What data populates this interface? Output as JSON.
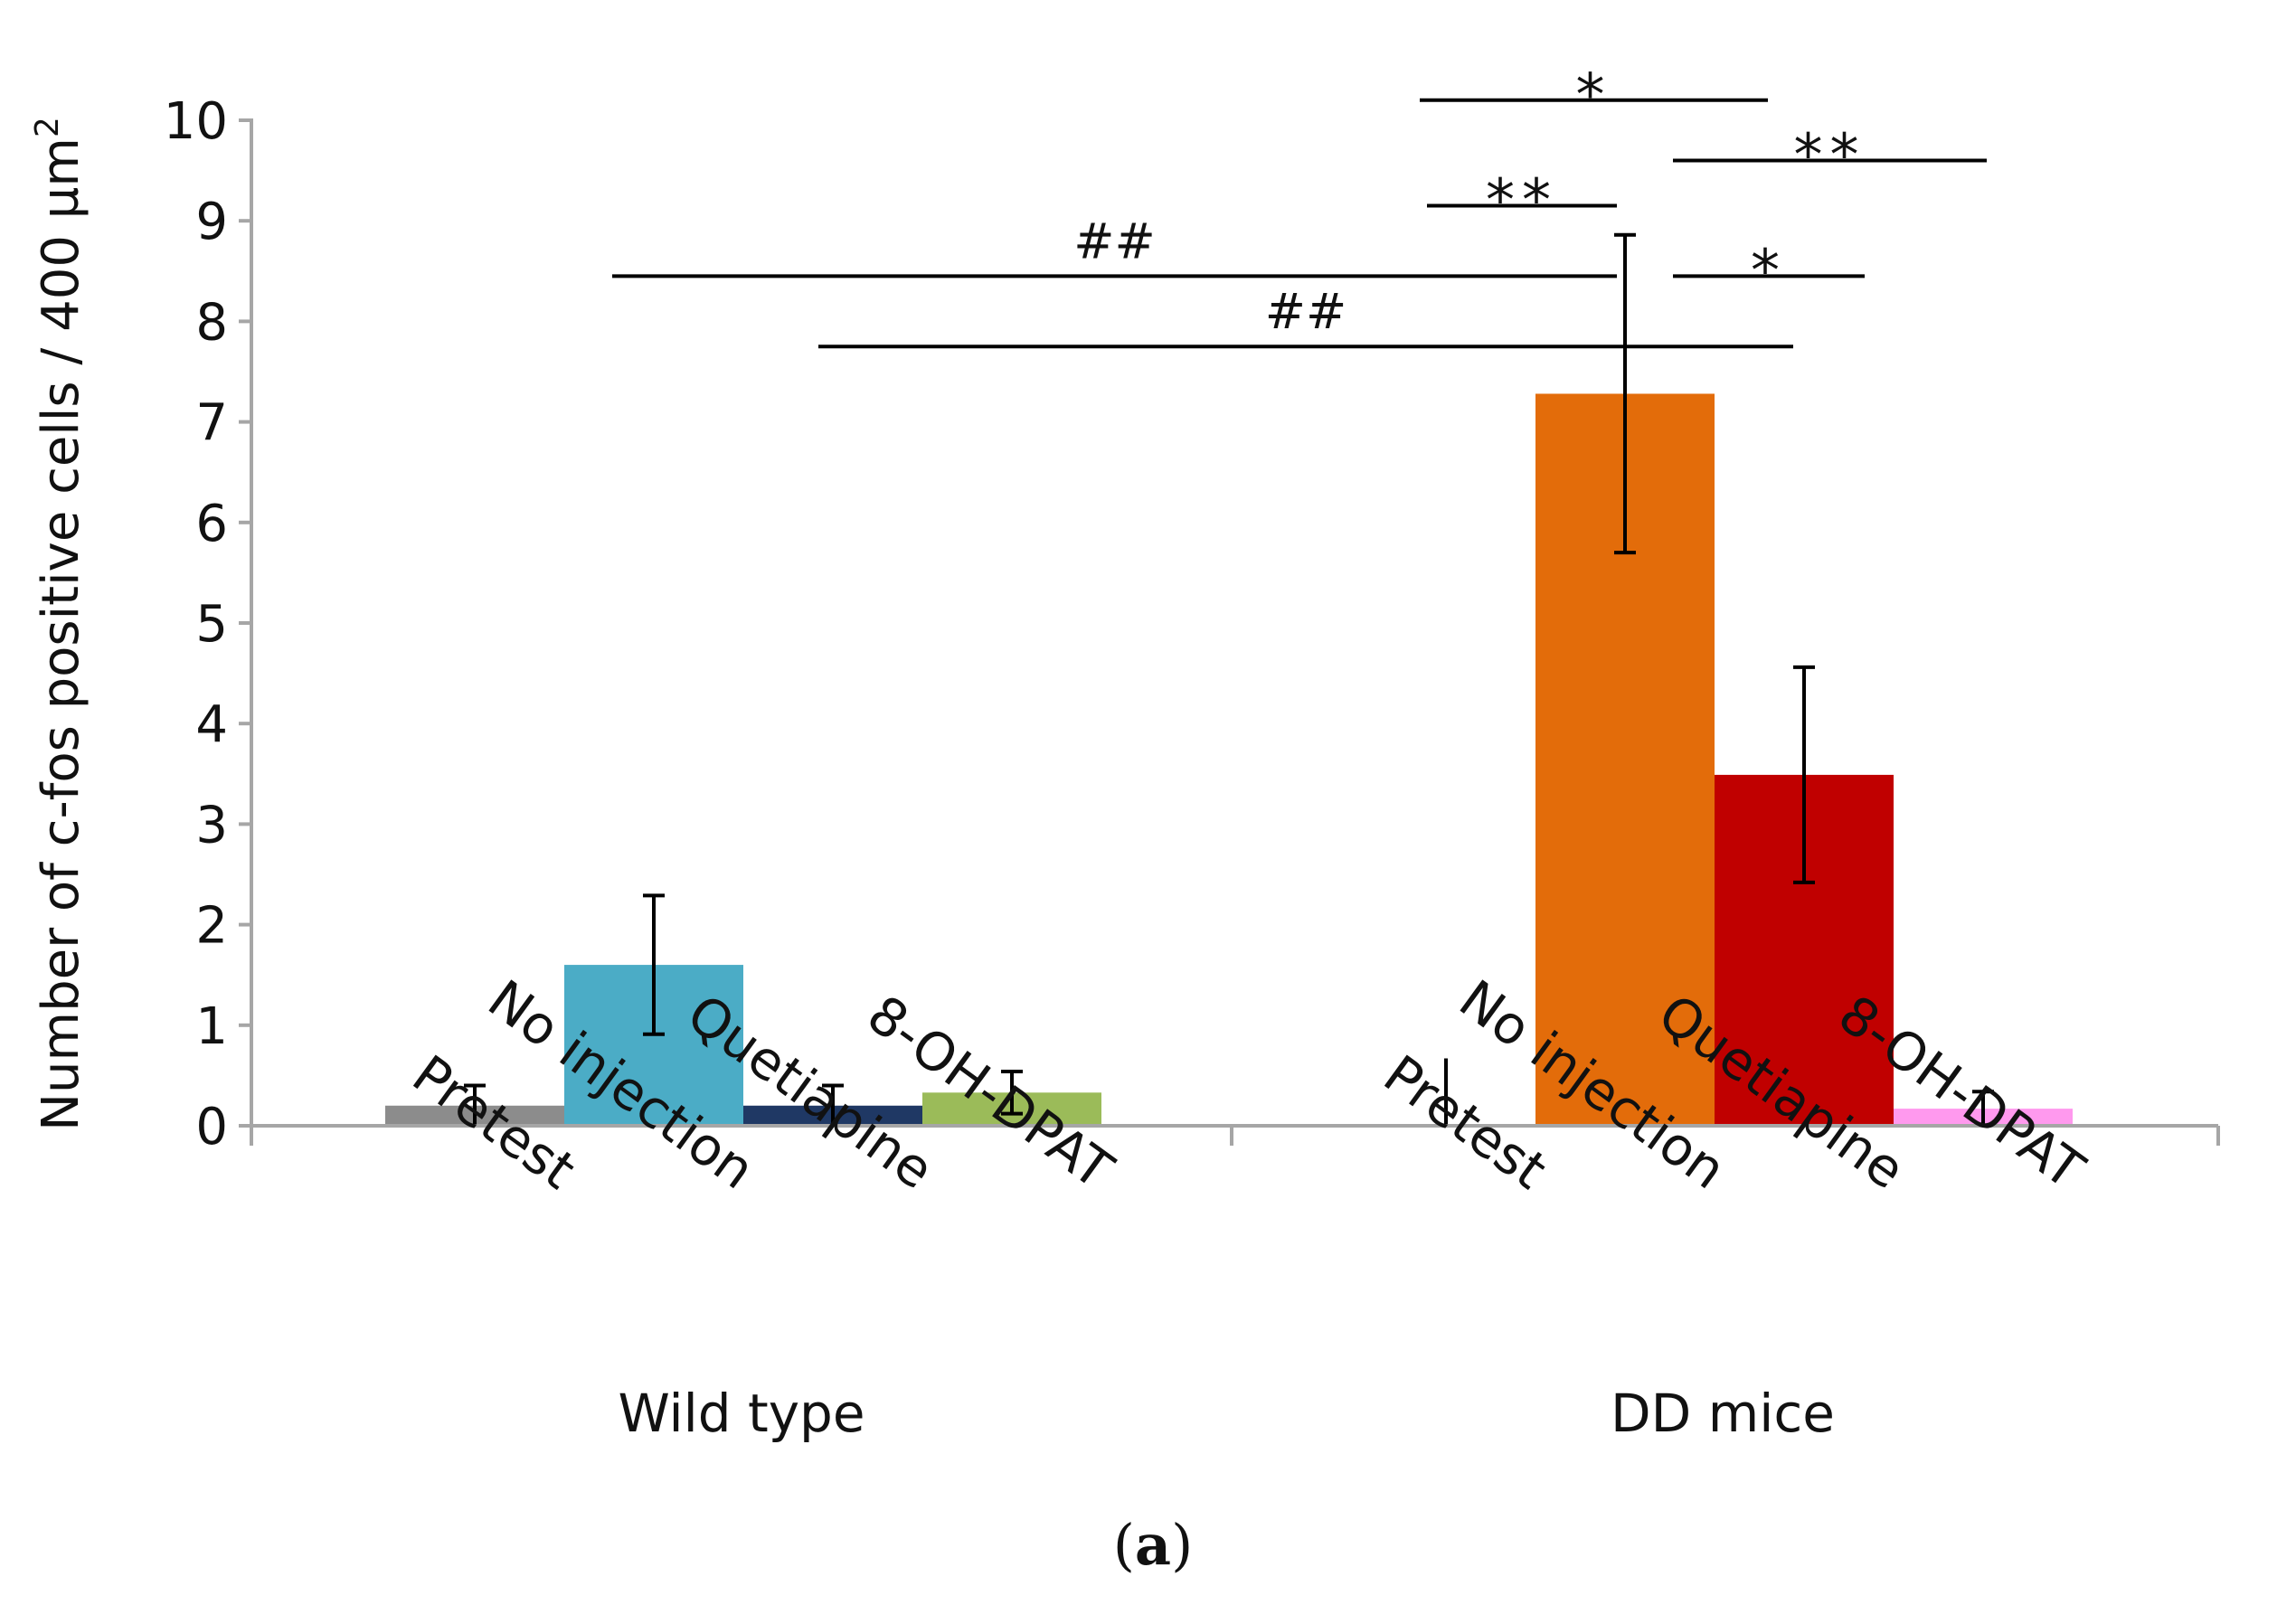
{
  "chart_data": {
    "type": "bar",
    "ylabel": "Number of c-fos positive cells / 400 µm",
    "ylabel_superscript": "2",
    "ylim": [
      0,
      10
    ],
    "yticks": [
      0,
      1,
      2,
      3,
      4,
      5,
      6,
      7,
      8,
      9,
      10
    ],
    "groups": [
      {
        "name": "Wild type",
        "bars": [
          {
            "label": "Pretest",
            "value": 0.2,
            "error": 0.2,
            "color": "#8c8c8c"
          },
          {
            "label": "No injection",
            "value": 1.6,
            "error": 0.69,
            "color": "#4bacc6"
          },
          {
            "label": "Quetiapine",
            "value": 0.2,
            "error": 0.2,
            "color": "#1f3864"
          },
          {
            "label": "8-OH-DPAT",
            "value": 0.33,
            "error": 0.21,
            "color": "#9bbb59"
          }
        ]
      },
      {
        "name": "DD mice",
        "bars": [
          {
            "label": "Pretest",
            "value": 0.0,
            "error": 0.67,
            "color": "#888888"
          },
          {
            "label": "No injection",
            "value": 7.28,
            "error": 1.58,
            "color": "#e36c0a"
          },
          {
            "label": "Quetiapine",
            "value": 3.49,
            "error": 1.07,
            "color": "#c00000"
          },
          {
            "label": "8-OH-DPAT",
            "value": 0.17,
            "error": 0.17,
            "color": "#ff99ee"
          }
        ]
      }
    ],
    "significance": [
      {
        "marker": "*",
        "from_bar": 4,
        "to_bar": 6,
        "level": 10.2
      },
      {
        "marker": "**",
        "from_bar": 6,
        "to_bar": 7,
        "level": 9.6
      },
      {
        "marker": "**",
        "from_bar": 4,
        "to_bar": 5,
        "level": 9.15
      },
      {
        "marker": "##",
        "from_bar": 1,
        "to_bar": 5,
        "level": 8.45
      },
      {
        "marker": "*",
        "from_bar": 6,
        "to_bar": 6,
        "level": 8.45
      },
      {
        "marker": "##",
        "from_bar": 2,
        "to_bar": 6,
        "level": 7.75
      }
    ],
    "panel_label": "(a)",
    "panel_label_bold": "a"
  }
}
